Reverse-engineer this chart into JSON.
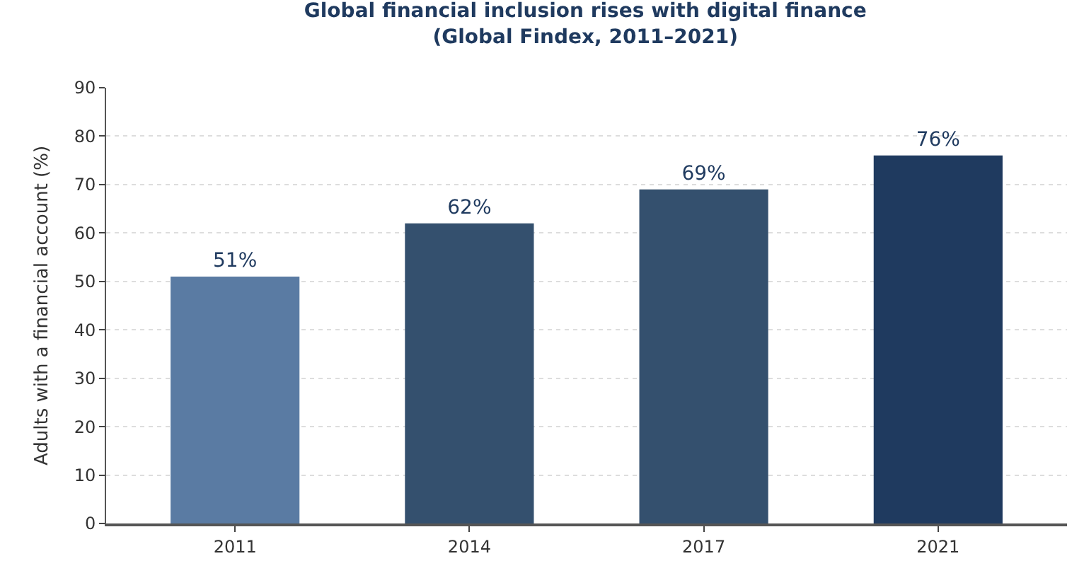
{
  "chart_data": {
    "type": "bar",
    "title": "Global financial inclusion rises with digital finance\n(Global Findex, 2011–2021)",
    "ylabel": "Adults with a financial account (%)",
    "categories": [
      "2011",
      "2014",
      "2017",
      "2021"
    ],
    "values": [
      51,
      62,
      69,
      76
    ],
    "colors": [
      "#5a7ba3",
      "#34506e",
      "#34506e",
      "#1f3a5f"
    ],
    "value_labels": [
      "51%",
      "62%",
      "69%",
      "76%"
    ],
    "ylim": [
      0,
      90
    ],
    "yticks": [
      0,
      10,
      20,
      30,
      40,
      50,
      60,
      70,
      80,
      90
    ],
    "grid": "y"
  }
}
